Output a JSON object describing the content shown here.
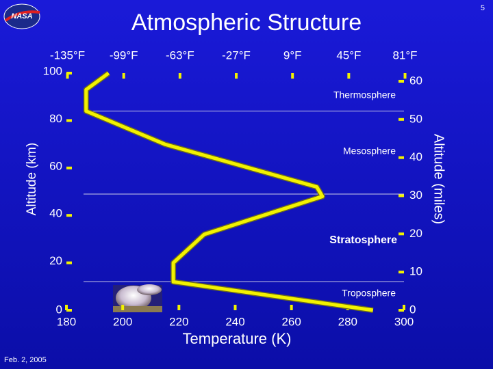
{
  "logo": "NASA",
  "page_number": "5",
  "date": "Feb. 2, 2005",
  "chart_data": {
    "type": "line",
    "title": "Atmospheric Structure",
    "x_label": "Temperature (K)",
    "y_label": "Altitude (km)",
    "y2_label": "Altitude (miles)",
    "x": [
      195,
      187,
      187,
      215,
      269,
      271,
      229,
      218,
      218,
      289
    ],
    "series": [
      {
        "color": "#f2f200",
        "values": [
          100,
          93,
          84,
          70,
          52,
          48,
          32,
          20,
          12,
          0
        ]
      }
    ],
    "xlim": [
      180,
      300
    ],
    "xticks": [
      180,
      200,
      220,
      240,
      260,
      280,
      300
    ],
    "x2lim": [
      -135.67,
      80.33
    ],
    "x2ticks": [
      {
        "value": -135,
        "label": "-135°F"
      },
      {
        "value": -99,
        "label": "-99°F"
      },
      {
        "value": -63,
        "label": "-63°F"
      },
      {
        "value": -27,
        "label": "-27°F"
      },
      {
        "value": 9,
        "label": "9°F"
      },
      {
        "value": 45,
        "label": "45°F"
      },
      {
        "value": 81,
        "label": "81°F"
      }
    ],
    "ylim": [
      0,
      100
    ],
    "yticks": [
      0,
      20,
      40,
      60,
      80,
      100
    ],
    "y2lim": [
      0,
      62.14
    ],
    "y2ticks": [
      0,
      10,
      20,
      30,
      40,
      50,
      60
    ],
    "boundaries": [
      84,
      49,
      12
    ],
    "annotations": [
      "Thermosphere",
      "Mesosphere",
      "Stratosphere",
      "Troposphere"
    ]
  }
}
